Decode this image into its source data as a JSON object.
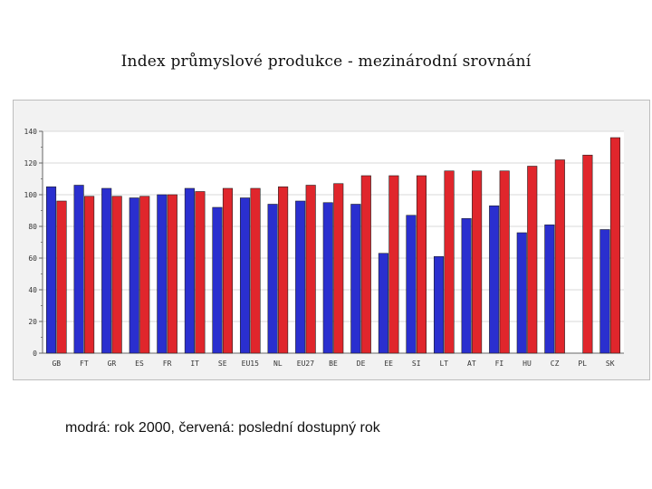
{
  "title": "Index průmyslové produkce - mezinárodní srovnání",
  "caption": "modrá: rok 2000, červená: poslední dostupný rok",
  "colors": {
    "series1": "#2a2fcf",
    "series2": "#e0262c",
    "grid": "#d9d9d9",
    "plot_bg": "#ffffff",
    "panel_bg": "#f2f2f2"
  },
  "chart_data": {
    "type": "bar",
    "title": "Index průmyslové produkce - mezinárodní srovnání",
    "xlabel": "",
    "ylabel": "",
    "ylim": [
      0,
      140
    ],
    "yticks": [
      0,
      20,
      40,
      60,
      80,
      100,
      120,
      140
    ],
    "grid": true,
    "legend": "none",
    "categories": [
      "GB",
      "FT",
      "GR",
      "ES",
      "FR",
      "IT",
      "SE",
      "EU15",
      "NL",
      "EU27",
      "BE",
      "DE",
      "EE",
      "SI",
      "LT",
      "AT",
      "FI",
      "HU",
      "CZ",
      "PL",
      "SK"
    ],
    "series": [
      {
        "color": "#2a2fcf",
        "values": [
          105,
          106,
          104,
          98,
          100,
          104,
          92,
          98,
          94,
          96,
          95,
          94,
          63,
          87,
          61,
          85,
          93,
          76,
          81,
          null,
          78
        ]
      },
      {
        "color": "#e0262c",
        "values": [
          96,
          99,
          99,
          99,
          100,
          102,
          104,
          104,
          105,
          106,
          107,
          112,
          112,
          112,
          115,
          115,
          115,
          118,
          122,
          125,
          136
        ]
      }
    ]
  }
}
